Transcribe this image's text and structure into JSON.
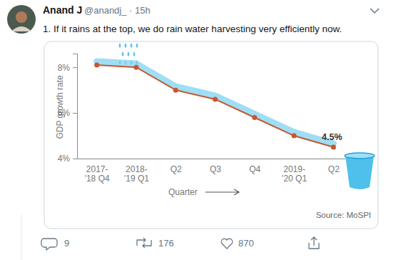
{
  "tweet": {
    "author": "Anand J",
    "byline": "@anandj_ · 15h",
    "text": "1. If it rains at the top, we do rain water harvesting very efficiently now.",
    "replies": 9,
    "retweets": 176,
    "likes": 870
  },
  "chart_data": {
    "type": "line",
    "y_label": "GDP growth rate",
    "x_label": "Quarter",
    "source": "Source: MoSPI",
    "categories": [
      "2017-\n'18 Q4",
      "2018-\n'19 Q1",
      "Q2",
      "Q3",
      "Q4",
      "2019-\n'20 Q1",
      "Q2"
    ],
    "values": [
      8.1,
      8.0,
      7.0,
      6.6,
      5.8,
      5.0,
      4.5
    ],
    "value_labels": [
      null,
      null,
      null,
      null,
      null,
      null,
      "4.5%"
    ],
    "data_labels": true,
    "color": "#c8562f",
    "marker": "circle",
    "ylim": [
      4,
      8.6
    ],
    "yticks": [
      {
        "value": 4,
        "label": "4%"
      },
      {
        "value": 6,
        "label": "6%"
      },
      {
        "value": 8,
        "label": "8%"
      }
    ],
    "grid": false
  }
}
